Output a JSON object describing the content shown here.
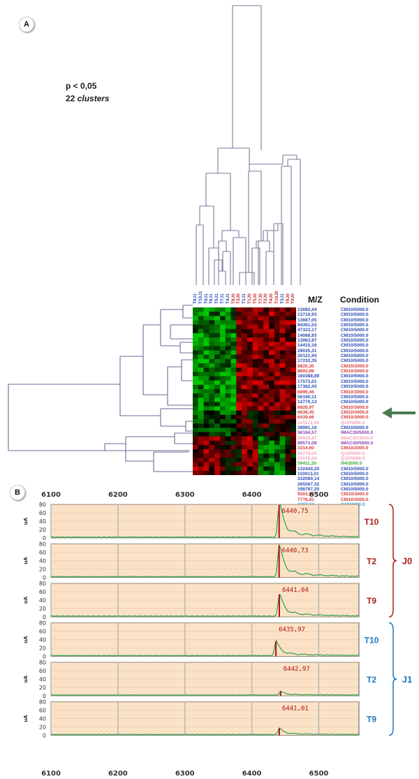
{
  "panel_a": {
    "letter": "A",
    "pvalue": "p < 0,05",
    "clusters_number": "22",
    "clusters_word": "clusters",
    "header_mz": "M/Z",
    "header_condition": "Condition",
    "samples": [
      {
        "label": "T8J1",
        "color": "#2a4bb5"
      },
      {
        "label": "T10J1",
        "color": "#2a4bb5"
      },
      {
        "label": "T9J1",
        "color": "#2a4bb5"
      },
      {
        "label": "T6J1",
        "color": "#2a4bb5"
      },
      {
        "label": "T5J1",
        "color": "#2a4bb5"
      },
      {
        "label": "T7J1",
        "color": "#2a4bb5"
      },
      {
        "label": "T4J1",
        "color": "#2a4bb5"
      },
      {
        "label": "T8J0",
        "color": "#c72b2b"
      },
      {
        "label": "T3J0",
        "color": "#c72b2b"
      },
      {
        "label": "T1J1",
        "color": "#2a4bb5"
      },
      {
        "label": "T1J0",
        "color": "#c72b2b"
      },
      {
        "label": "T5J0",
        "color": "#c72b2b"
      },
      {
        "label": "T7J0",
        "color": "#c72b2b"
      },
      {
        "label": "T2J0",
        "color": "#c72b2b"
      },
      {
        "label": "T4J0",
        "color": "#c72b2b"
      },
      {
        "label": "T10J0",
        "color": "#c72b2b"
      },
      {
        "label": "T3J1",
        "color": "#2a4bb5"
      },
      {
        "label": "T6J0",
        "color": "#c72b2b"
      },
      {
        "label": "T9J0",
        "color": "#c72b2b"
      }
    ],
    "features": [
      {
        "mz": "13082,44",
        "condition": "CM10/5000.0",
        "color": "#2a4bb5"
      },
      {
        "mz": "13710,93",
        "condition": "CM10/5000.0",
        "color": "#2a4bb5"
      },
      {
        "mz": "13687,05",
        "condition": "CM10/5000.0",
        "color": "#2a4bb5"
      },
      {
        "mz": "94361,53",
        "condition": "CM10/5000.0",
        "color": "#2a4bb5"
      },
      {
        "mz": "47323,17",
        "condition": "CM10/5000.0",
        "color": "#2a4bb5"
      },
      {
        "mz": "14068,93",
        "condition": "CM10/5000.0",
        "color": "#2a4bb5"
      },
      {
        "mz": "13963,97",
        "condition": "CM10/5000.0",
        "color": "#2a4bb5"
      },
      {
        "mz": "14415,16",
        "condition": "CM10/5000.0",
        "color": "#2a4bb5"
      },
      {
        "mz": "29025,31",
        "condition": "CM10/5000.0",
        "color": "#2a4bb5"
      },
      {
        "mz": "20121,94",
        "condition": "CM10/5000.0",
        "color": "#2a4bb5"
      },
      {
        "mz": "17232,35",
        "condition": "CM10/5000.0",
        "color": "#2a4bb5"
      },
      {
        "mz": "8820,30",
        "condition": "CM10/3000.0",
        "color": "#d63a3a"
      },
      {
        "mz": "8693,89",
        "condition": "CM10/3000.0",
        "color": "#d63a3a"
      },
      {
        "mz": "160388,89",
        "condition": "CM10/5000.0",
        "color": "#2a4bb5"
      },
      {
        "mz": "17573,01",
        "condition": "CM10/5000.0",
        "color": "#2a4bb5"
      },
      {
        "mz": "17362,43",
        "condition": "CM10/5000.0",
        "color": "#2a4bb5"
      },
      {
        "mz": "6896,46",
        "condition": "CM10/3000.0",
        "color": "#d63a3a"
      },
      {
        "mz": "56160,11",
        "condition": "CM10/5000.0",
        "color": "#2a4bb5"
      },
      {
        "mz": "12770,13",
        "condition": "CM10/5000.0",
        "color": "#2a4bb5"
      },
      {
        "mz": "8926,97",
        "condition": "CM10/3000.0",
        "color": "#d63a3a"
      },
      {
        "mz": "6638,45",
        "condition": "CM10/3000.0",
        "color": "#d63a3a"
      },
      {
        "mz": "6439,66",
        "condition": "CM10/3000.0",
        "color": "#d63a3a"
      },
      {
        "mz": "101172,54",
        "condition": "Q10/5000.0",
        "color": "#f0a0b8"
      },
      {
        "mz": "39991,16",
        "condition": "CM10/5000.0",
        "color": "#2a4bb5"
      },
      {
        "mz": "56164,57",
        "condition": "IMAC30/5000.0",
        "color": "#8a3fb5"
      },
      {
        "mz": "28015,97",
        "condition": "IMAC30/3000.0",
        "color": "#f0a0b8"
      },
      {
        "mz": "89573,08",
        "condition": "IMAC30/5000.0",
        "color": "#8a3fb5"
      },
      {
        "mz": "3314,60",
        "condition": "CM10/3000.0",
        "color": "#d63a3a"
      },
      {
        "mz": "25778,03",
        "condition": "Q10/5000.0",
        "color": "#f0a0b8"
      },
      {
        "mz": "33575,64",
        "condition": "Q10/5000.0",
        "color": "#f0a0b8"
      },
      {
        "mz": "59411,20",
        "condition": "H4/3000.0",
        "color": "#3aa83a"
      },
      {
        "mz": "132440,20",
        "condition": "CM10/5000.0",
        "color": "#2a4bb5"
      },
      {
        "mz": "110013,01",
        "condition": "CM10/5000.0",
        "color": "#2a4bb5"
      },
      {
        "mz": "332080,14",
        "condition": "CM10/5000.0",
        "color": "#2a4bb5"
      },
      {
        "mz": "265567,32",
        "condition": "CM10/5000.0",
        "color": "#2a4bb5"
      },
      {
        "mz": "198787,20",
        "condition": "CM10/5000.0",
        "color": "#2a4bb5"
      },
      {
        "mz": "9303,34",
        "condition": "CM10/3000.0",
        "color": "#d63a3a"
      },
      {
        "mz": "7778,81",
        "condition": "CM10/3000.0",
        "color": "#d63a3a"
      },
      {
        "mz": "4707,04",
        "condition": "Q10/3000.0",
        "color": "#3aa0d6"
      }
    ],
    "heatmap_colors": {
      "low": "#00c000",
      "mid": "#000000",
      "high": "#ff1a1a"
    },
    "arrow_color": "#4a7a52"
  },
  "panel_b": {
    "letter": "B",
    "x_ticks": [
      "6100",
      "6200",
      "6300",
      "6400",
      "6500"
    ],
    "x_range": [
      6100,
      6560
    ],
    "y_ticks": [
      "80",
      "60",
      "40",
      "20",
      "0"
    ],
    "y_unit": "uA",
    "spectra": [
      {
        "label": "T10",
        "peak": "6440,75",
        "peak_x": 6440.75,
        "peak_height": 80,
        "group": "J0",
        "color": "#b01d1d"
      },
      {
        "label": "T2",
        "peak": "6440,73",
        "peak_x": 6440.73,
        "peak_height": 72,
        "group": "J0",
        "color": "#b01d1d"
      },
      {
        "label": "T9",
        "peak": "6441,04",
        "peak_x": 6441.04,
        "peak_height": 50,
        "group": "J0",
        "color": "#b01d1d"
      },
      {
        "label": "T10",
        "peak": "6435,97",
        "peak_x": 6435.97,
        "peak_height": 32,
        "group": "J1",
        "color": "#1d78c4"
      },
      {
        "label": "T2",
        "peak": "6442,97",
        "peak_x": 6442.97,
        "peak_height": 8,
        "group": "J1",
        "color": "#1d78c4"
      },
      {
        "label": "T9",
        "peak": "6441,01",
        "peak_x": 6441.01,
        "peak_height": 14,
        "group": "J1",
        "color": "#1d78c4"
      }
    ],
    "groups": [
      {
        "label": "J0",
        "color": "#b01d1d"
      },
      {
        "label": "J1",
        "color": "#1d78c4"
      }
    ],
    "plot_bg": "#fbe2c6",
    "trace_color": "#2aa050"
  }
}
